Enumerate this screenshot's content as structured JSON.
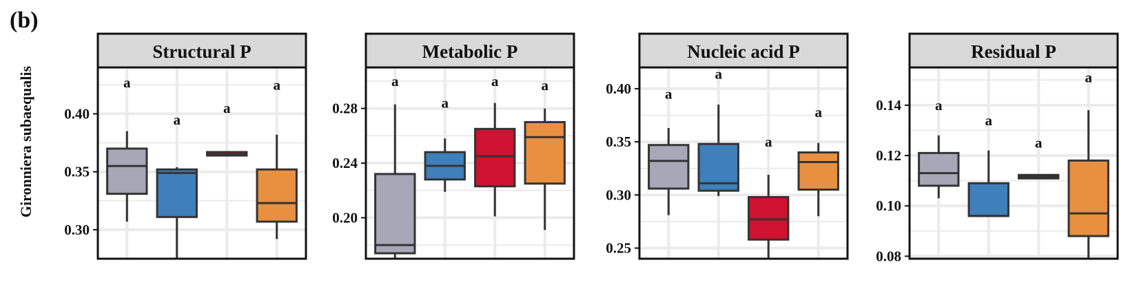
{
  "figure_label": "(b)",
  "y_axis_title": "Gironniera subaequalis",
  "colors": {
    "grid": "#ebebeb",
    "strip": "#d9d9d9",
    "frame": "#111111",
    "box_stroke": "#333333",
    "groups": [
      "#a6a8b8",
      "#3f7fbb",
      "#cf1230",
      "#e89040"
    ]
  },
  "chart_data": [
    {
      "type": "box",
      "title": "Structural P",
      "ylim": [
        0.275,
        0.44
      ],
      "yticks": [
        0.3,
        0.35,
        0.4
      ],
      "ytick_labels": [
        "0.30",
        "0.35",
        "0.40"
      ],
      "grid": true,
      "groups": [
        {
          "min": 0.307,
          "q1": 0.331,
          "median": 0.355,
          "q3": 0.37,
          "max": 0.385,
          "letter": "a",
          "letter_y": 0.427
        },
        {
          "min": 0.275,
          "q1": 0.311,
          "median": 0.349,
          "q3": 0.352,
          "max": 0.354,
          "letter": "a",
          "letter_y": 0.395
        },
        {
          "min": 0.365,
          "q1": 0.365,
          "median": 0.365,
          "q3": 0.366,
          "max": 0.366,
          "letter": "a",
          "letter_y": 0.405
        },
        {
          "min": 0.292,
          "q1": 0.307,
          "median": 0.323,
          "q3": 0.352,
          "max": 0.382,
          "letter": "a",
          "letter_y": 0.425
        }
      ]
    },
    {
      "type": "box",
      "title": "Metabolic P",
      "ylim": [
        0.17,
        0.31
      ],
      "yticks": [
        0.2,
        0.24,
        0.28
      ],
      "ytick_labels": [
        "0.20",
        "0.24",
        "0.28"
      ],
      "grid": true,
      "groups": [
        {
          "min": 0.17,
          "q1": 0.174,
          "median": 0.18,
          "q3": 0.232,
          "max": 0.283,
          "letter": "a",
          "letter_y": 0.3
        },
        {
          "min": 0.219,
          "q1": 0.228,
          "median": 0.238,
          "q3": 0.248,
          "max": 0.258,
          "letter": "a",
          "letter_y": 0.284
        },
        {
          "min": 0.201,
          "q1": 0.223,
          "median": 0.245,
          "q3": 0.265,
          "max": 0.284,
          "letter": "a",
          "letter_y": 0.3
        },
        {
          "min": 0.191,
          "q1": 0.225,
          "median": 0.259,
          "q3": 0.27,
          "max": 0.28,
          "letter": "a",
          "letter_y": 0.297
        }
      ]
    },
    {
      "type": "box",
      "title": "Nucleic acid P",
      "ylim": [
        0.24,
        0.42
      ],
      "yticks": [
        0.25,
        0.3,
        0.35,
        0.4
      ],
      "ytick_labels": [
        "0.25",
        "0.30",
        "0.35",
        "0.40"
      ],
      "grid": true,
      "groups": [
        {
          "min": 0.281,
          "q1": 0.306,
          "median": 0.332,
          "q3": 0.347,
          "max": 0.363,
          "letter": "a",
          "letter_y": 0.395
        },
        {
          "min": 0.299,
          "q1": 0.304,
          "median": 0.311,
          "q3": 0.348,
          "max": 0.385,
          "letter": "a",
          "letter_y": 0.414
        },
        {
          "min": 0.24,
          "q1": 0.258,
          "median": 0.277,
          "q3": 0.298,
          "max": 0.319,
          "letter": "a",
          "letter_y": 0.35
        },
        {
          "min": 0.28,
          "q1": 0.305,
          "median": 0.331,
          "q3": 0.34,
          "max": 0.349,
          "letter": "a",
          "letter_y": 0.378
        }
      ]
    },
    {
      "type": "box",
      "title": "Residual P",
      "ylim": [
        0.079,
        0.155
      ],
      "yticks": [
        0.08,
        0.1,
        0.12,
        0.14
      ],
      "ytick_labels": [
        "0.08",
        "0.10",
        "0.12",
        "0.14"
      ],
      "grid": true,
      "groups": [
        {
          "min": 0.103,
          "q1": 0.108,
          "median": 0.113,
          "q3": 0.121,
          "max": 0.128,
          "letter": "a",
          "letter_y": 0.14
        },
        {
          "min": 0.096,
          "q1": 0.096,
          "median": 0.096,
          "q3": 0.109,
          "max": 0.122,
          "letter": "a",
          "letter_y": 0.134
        },
        {
          "min": 0.111,
          "q1": 0.1112,
          "median": 0.1116,
          "q3": 0.112,
          "max": 0.112,
          "letter": "a",
          "letter_y": 0.125
        },
        {
          "min": 0.079,
          "q1": 0.088,
          "median": 0.097,
          "q3": 0.118,
          "max": 0.138,
          "letter": "a",
          "letter_y": 0.151
        }
      ]
    }
  ]
}
